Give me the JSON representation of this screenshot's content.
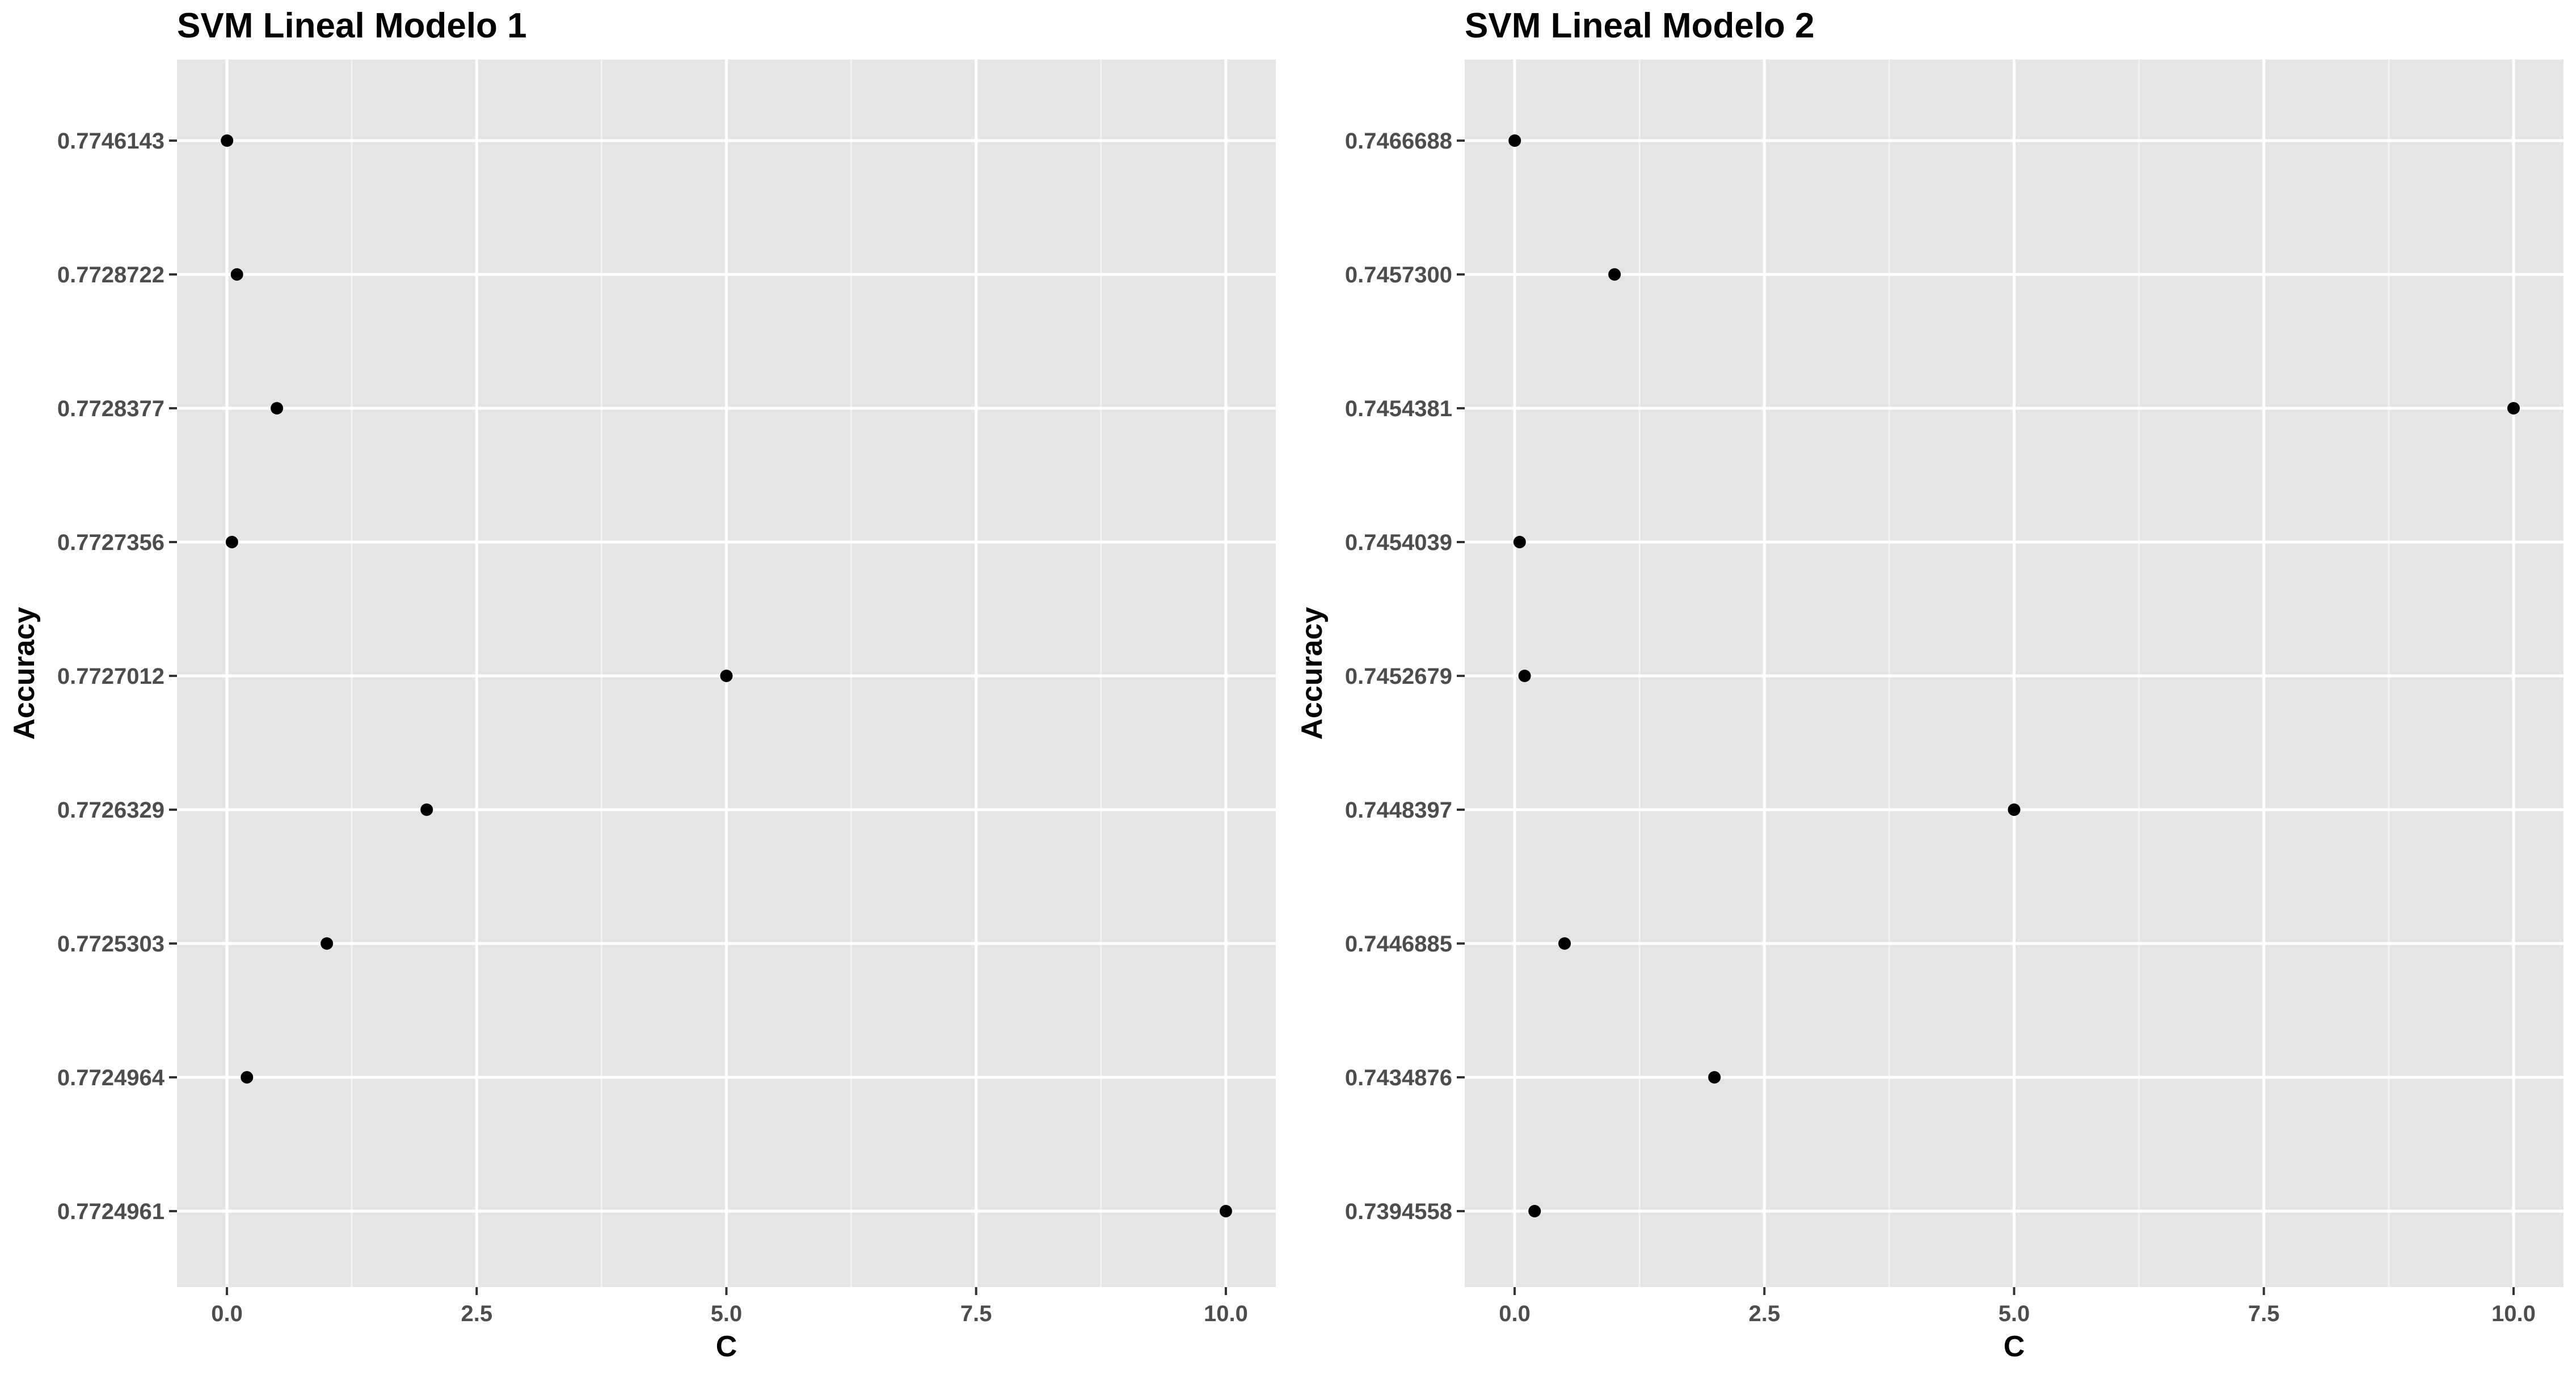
{
  "chart_data": [
    {
      "type": "scatter",
      "title": "SVM Lineal Modelo 1",
      "xlabel": "C",
      "ylabel": "Accuracy",
      "xlim": [
        -0.5,
        10.5
      ],
      "x_ticks": [
        "0.0",
        "2.5",
        "5.0",
        "7.5",
        "10.0"
      ],
      "x_tick_values": [
        0,
        2.5,
        5,
        7.5,
        10
      ],
      "y_scale": "categorical",
      "y_levels": [
        "0.7724961",
        "0.7724964",
        "0.7725303",
        "0.7726329",
        "0.7727012",
        "0.7727356",
        "0.7728377",
        "0.7728722",
        "0.7746143"
      ],
      "grid": true,
      "legend": "none",
      "point_color": "#000000",
      "panel_background": "#e5e5e5",
      "points": [
        {
          "x": 0.001,
          "y": "0.7746143"
        },
        {
          "x": 0.1,
          "y": "0.7728722"
        },
        {
          "x": 0.5,
          "y": "0.7728377"
        },
        {
          "x": 0.05,
          "y": "0.7727356"
        },
        {
          "x": 5,
          "y": "0.7727012"
        },
        {
          "x": 2,
          "y": "0.7726329"
        },
        {
          "x": 1,
          "y": "0.7725303"
        },
        {
          "x": 0.2,
          "y": "0.7724964"
        },
        {
          "x": 10,
          "y": "0.7724961"
        }
      ]
    },
    {
      "type": "scatter",
      "title": "SVM Lineal Modelo 2",
      "xlabel": "C",
      "ylabel": "Accuracy",
      "xlim": [
        -0.5,
        10.5
      ],
      "x_ticks": [
        "0.0",
        "2.5",
        "5.0",
        "7.5",
        "10.0"
      ],
      "x_tick_values": [
        0,
        2.5,
        5,
        7.5,
        10
      ],
      "y_scale": "categorical",
      "y_levels": [
        "0.7394558",
        "0.7434876",
        "0.7446885",
        "0.7448397",
        "0.7452679",
        "0.7454039",
        "0.7454381",
        "0.7457300",
        "0.7466688"
      ],
      "grid": true,
      "legend": "none",
      "point_color": "#000000",
      "panel_background": "#e5e5e5",
      "points": [
        {
          "x": 0.001,
          "y": "0.7466688"
        },
        {
          "x": 1,
          "y": "0.7457300"
        },
        {
          "x": 10,
          "y": "0.7454381"
        },
        {
          "x": 0.05,
          "y": "0.7454039"
        },
        {
          "x": 0.1,
          "y": "0.7452679"
        },
        {
          "x": 5,
          "y": "0.7448397"
        },
        {
          "x": 0.5,
          "y": "0.7446885"
        },
        {
          "x": 2,
          "y": "0.7434876"
        },
        {
          "x": 0.2,
          "y": "0.7394558"
        }
      ]
    }
  ]
}
